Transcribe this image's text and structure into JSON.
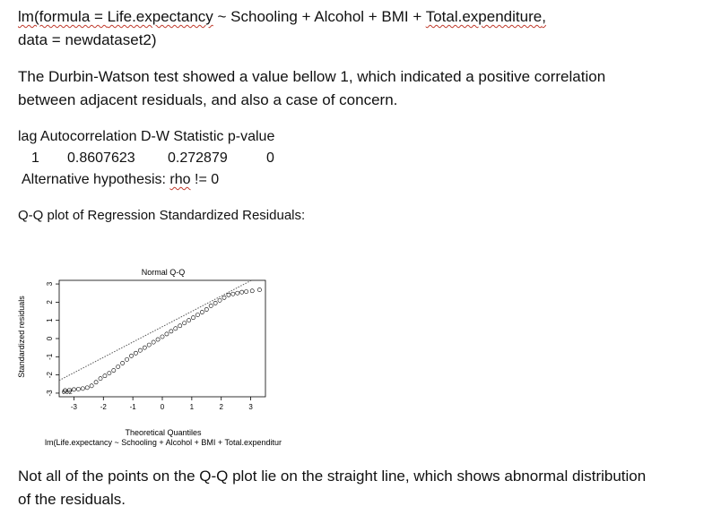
{
  "code": {
    "line1_prefix": "lm(formula = ",
    "var_le": "Life.expectancy",
    "tilde_part": " ~ Schooling + Alcohol + BMI + ",
    "var_te": "Total.expenditure",
    "line1_suffix": ",",
    "line2": "data = newdataset2)"
  },
  "paragraph1": {
    "line1": "The Durbin-Watson test showed a value bellow 1, which indicated a positive correlation",
    "line2": "between adjacent residuals, and also a case of concern."
  },
  "dw_output": {
    "header": "lag Autocorrelation D-W Statistic p-value",
    "lag": "1",
    "autocorrelation": "0.8607623",
    "dw_statistic": "0.272879",
    "p_value": "0",
    "alt_prefix": "Alternative hypothesis: ",
    "alt_rho": "rho",
    "alt_suffix": " != 0"
  },
  "qq_heading": "Q-Q plot of Regression Standardized Residuals:",
  "chart_data": {
    "type": "scatter",
    "title": "Normal Q-Q",
    "xlabel": "Theoretical Quantiles",
    "ylabel": "Standardized residuals",
    "subtitle": "lm(Life.expectancy ~ Schooling + Alcohol + BMI + Total.expenditur",
    "xlim": [
      -3.5,
      3.5
    ],
    "ylim": [
      -3.2,
      3.2
    ],
    "xticks": [
      "-3",
      "-2",
      "-1",
      "0",
      "1",
      "2",
      "3"
    ],
    "yticks": [
      "-3",
      "-2",
      "-1",
      "0",
      "1",
      "2",
      "3"
    ],
    "outlier_labels": "682",
    "points": [
      [
        -3.3,
        -2.85
      ],
      [
        -3.15,
        -2.83
      ],
      [
        -3.0,
        -2.8
      ],
      [
        -2.85,
        -2.78
      ],
      [
        -2.7,
        -2.75
      ],
      [
        -2.55,
        -2.7
      ],
      [
        -2.4,
        -2.6
      ],
      [
        -2.25,
        -2.4
      ],
      [
        -2.1,
        -2.2
      ],
      [
        -1.95,
        -2.05
      ],
      [
        -1.8,
        -1.9
      ],
      [
        -1.65,
        -1.75
      ],
      [
        -1.5,
        -1.55
      ],
      [
        -1.35,
        -1.35
      ],
      [
        -1.2,
        -1.15
      ],
      [
        -1.05,
        -0.95
      ],
      [
        -0.9,
        -0.8
      ],
      [
        -0.75,
        -0.65
      ],
      [
        -0.6,
        -0.5
      ],
      [
        -0.45,
        -0.35
      ],
      [
        -0.3,
        -0.2
      ],
      [
        -0.15,
        -0.05
      ],
      [
        0.0,
        0.1
      ],
      [
        0.15,
        0.25
      ],
      [
        0.3,
        0.4
      ],
      [
        0.45,
        0.55
      ],
      [
        0.6,
        0.7
      ],
      [
        0.75,
        0.85
      ],
      [
        0.9,
        1.0
      ],
      [
        1.05,
        1.15
      ],
      [
        1.2,
        1.3
      ],
      [
        1.35,
        1.45
      ],
      [
        1.5,
        1.6
      ],
      [
        1.65,
        1.8
      ],
      [
        1.8,
        1.95
      ],
      [
        1.95,
        2.1
      ],
      [
        2.1,
        2.25
      ],
      [
        2.25,
        2.4
      ],
      [
        2.4,
        2.45
      ],
      [
        2.55,
        2.5
      ],
      [
        2.7,
        2.55
      ],
      [
        2.85,
        2.58
      ],
      [
        3.05,
        2.62
      ],
      [
        3.3,
        2.68
      ]
    ],
    "reference_line": [
      [
        -3.5,
        -2.3
      ],
      [
        3.5,
        3.6
      ]
    ]
  },
  "paragraph2": {
    "line1": "Not all of the points on the Q-Q plot lie on the straight line, which shows abnormal distribution",
    "line2": "of the residuals."
  }
}
